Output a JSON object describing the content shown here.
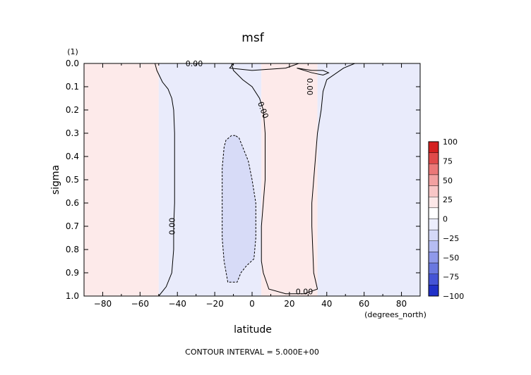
{
  "chart_data": {
    "type": "contour",
    "title": "msf",
    "xlabel": "latitude",
    "ylabel": "sigma",
    "x_units": "(degrees_north)",
    "y_units": "(1)",
    "footer": "CONTOUR INTERVAL = 5.000E+00",
    "xlim": [
      -90,
      90
    ],
    "ylim": [
      0.0,
      1.0
    ],
    "y_inverted": true,
    "x_ticks": [
      -80,
      -60,
      -40,
      -20,
      0,
      20,
      40,
      60,
      80
    ],
    "x_tick_labels": [
      "−80",
      "−60",
      "−40",
      "−20",
      "0",
      "20",
      "40",
      "60",
      "80"
    ],
    "y_ticks": [
      0.0,
      0.1,
      0.2,
      0.3,
      0.4,
      0.5,
      0.6,
      0.7,
      0.8,
      0.9,
      1.0
    ],
    "y_tick_labels": [
      "0.0",
      "0.1",
      "0.2",
      "0.3",
      "0.4",
      "0.5",
      "0.6",
      "0.7",
      "0.8",
      "0.9",
      "1.0"
    ],
    "contour_interval": 5.0,
    "colorbar": {
      "levels": [
        100,
        75,
        50,
        25,
        0,
        -25,
        -50,
        -75,
        -100
      ],
      "labels": [
        "100",
        "75",
        "50",
        "25",
        "0",
        "−25",
        "−50",
        "−75",
        "−100"
      ],
      "band_colors": [
        "#d42020",
        "#e04a4a",
        "#eb7878",
        "#f2a1a1",
        "#f8c6c6",
        "#fde8e8",
        "#ffffff",
        "#eceefd",
        "#d5d9f8",
        "#b5bcf2",
        "#8f99ea",
        "#6a78e0",
        "#4554d6",
        "#2030c8"
      ]
    },
    "regions": [
      {
        "sign": "positive",
        "color": "#fdeaea",
        "x_range": [
          -90,
          -50
        ]
      },
      {
        "sign": "negative",
        "color": "#e9ebfb",
        "x_range": [
          -50,
          5
        ]
      },
      {
        "sign": "positive",
        "color": "#fdeaea",
        "x_range": [
          5,
          35
        ]
      },
      {
        "sign": "negative",
        "color": "#e9ebfb",
        "x_range": [
          35,
          90
        ]
      },
      {
        "sign": "negative",
        "color": "#d7dbf7",
        "x_range": [
          -16,
          2
        ],
        "y_range": [
          0.31,
          0.94
        ]
      }
    ],
    "contours": [
      {
        "level": 0,
        "style": "solid",
        "points": [
          [
            -52,
            0.0
          ],
          [
            -51,
            0.03
          ],
          [
            -48,
            0.08
          ],
          [
            -45,
            0.11
          ],
          [
            -43,
            0.15
          ],
          [
            -42,
            0.2
          ],
          [
            -41.5,
            0.3
          ],
          [
            -41.5,
            0.45
          ],
          [
            -41.5,
            0.6
          ],
          [
            -42,
            0.7
          ],
          [
            -42,
            0.8
          ],
          [
            -43,
            0.9
          ],
          [
            -46,
            0.96
          ],
          [
            -50,
            1.0
          ]
        ]
      },
      {
        "level": 0,
        "style": "solid",
        "points": [
          [
            -11,
            0.0
          ],
          [
            -10,
            0.03
          ],
          [
            -5,
            0.07
          ],
          [
            0,
            0.1
          ],
          [
            4,
            0.15
          ],
          [
            6,
            0.2
          ],
          [
            7,
            0.3
          ],
          [
            7,
            0.5
          ],
          [
            6,
            0.6
          ],
          [
            5,
            0.7
          ],
          [
            5,
            0.85
          ],
          [
            6,
            0.9
          ],
          [
            9,
            0.97
          ],
          [
            18,
            0.99
          ],
          [
            28,
            0.99
          ],
          [
            35,
            0.97
          ],
          [
            33,
            0.9
          ],
          [
            32,
            0.7
          ],
          [
            32,
            0.6
          ],
          [
            33,
            0.5
          ],
          [
            34,
            0.4
          ],
          [
            35,
            0.3
          ],
          [
            37,
            0.2
          ],
          [
            38,
            0.12
          ],
          [
            40,
            0.07
          ],
          [
            49,
            0.02
          ],
          [
            55,
            0.0
          ]
        ]
      },
      {
        "level": 0,
        "style": "solid",
        "points": [
          [
            -31,
            0.0
          ],
          [
            -10,
            0.0
          ],
          [
            -12,
            0.02
          ],
          [
            0,
            0.03
          ],
          [
            18,
            0.02
          ],
          [
            25,
            0.0
          ]
        ]
      },
      {
        "level": 0,
        "style": "solid",
        "points": [
          [
            24,
            0.02
          ],
          [
            32,
            0.03
          ],
          [
            38,
            0.03
          ],
          [
            41,
            0.04
          ],
          [
            38,
            0.05
          ],
          [
            32,
            0.04
          ],
          [
            24,
            0.02
          ]
        ]
      },
      {
        "level": -5,
        "style": "dashed",
        "points": [
          [
            -9,
            0.31
          ],
          [
            -11,
            0.31
          ],
          [
            -14,
            0.33
          ],
          [
            -15,
            0.36
          ],
          [
            -16,
            0.45
          ],
          [
            -16,
            0.6
          ],
          [
            -16,
            0.75
          ],
          [
            -15,
            0.85
          ],
          [
            -13,
            0.94
          ],
          [
            -8,
            0.94
          ],
          [
            -6,
            0.9
          ],
          [
            -3,
            0.87
          ],
          [
            1,
            0.84
          ],
          [
            2,
            0.75
          ],
          [
            2,
            0.6
          ],
          [
            0,
            0.5
          ],
          [
            -2,
            0.42
          ],
          [
            -4,
            0.38
          ],
          [
            -7,
            0.32
          ],
          [
            -9,
            0.31
          ]
        ]
      }
    ],
    "contour_labels": [
      {
        "text": "0.00",
        "x": -31,
        "y": 0.0,
        "rotate": 0
      },
      {
        "text": "0.00",
        "x": -43,
        "y": 0.7,
        "rotate": -90
      },
      {
        "text": "0.00",
        "x": 6,
        "y": 0.2,
        "rotate": 70
      },
      {
        "text": "0.00",
        "x": 31,
        "y": 0.1,
        "rotate": 90
      },
      {
        "text": "0.00",
        "x": 28,
        "y": 0.98,
        "rotate": 0
      }
    ]
  }
}
